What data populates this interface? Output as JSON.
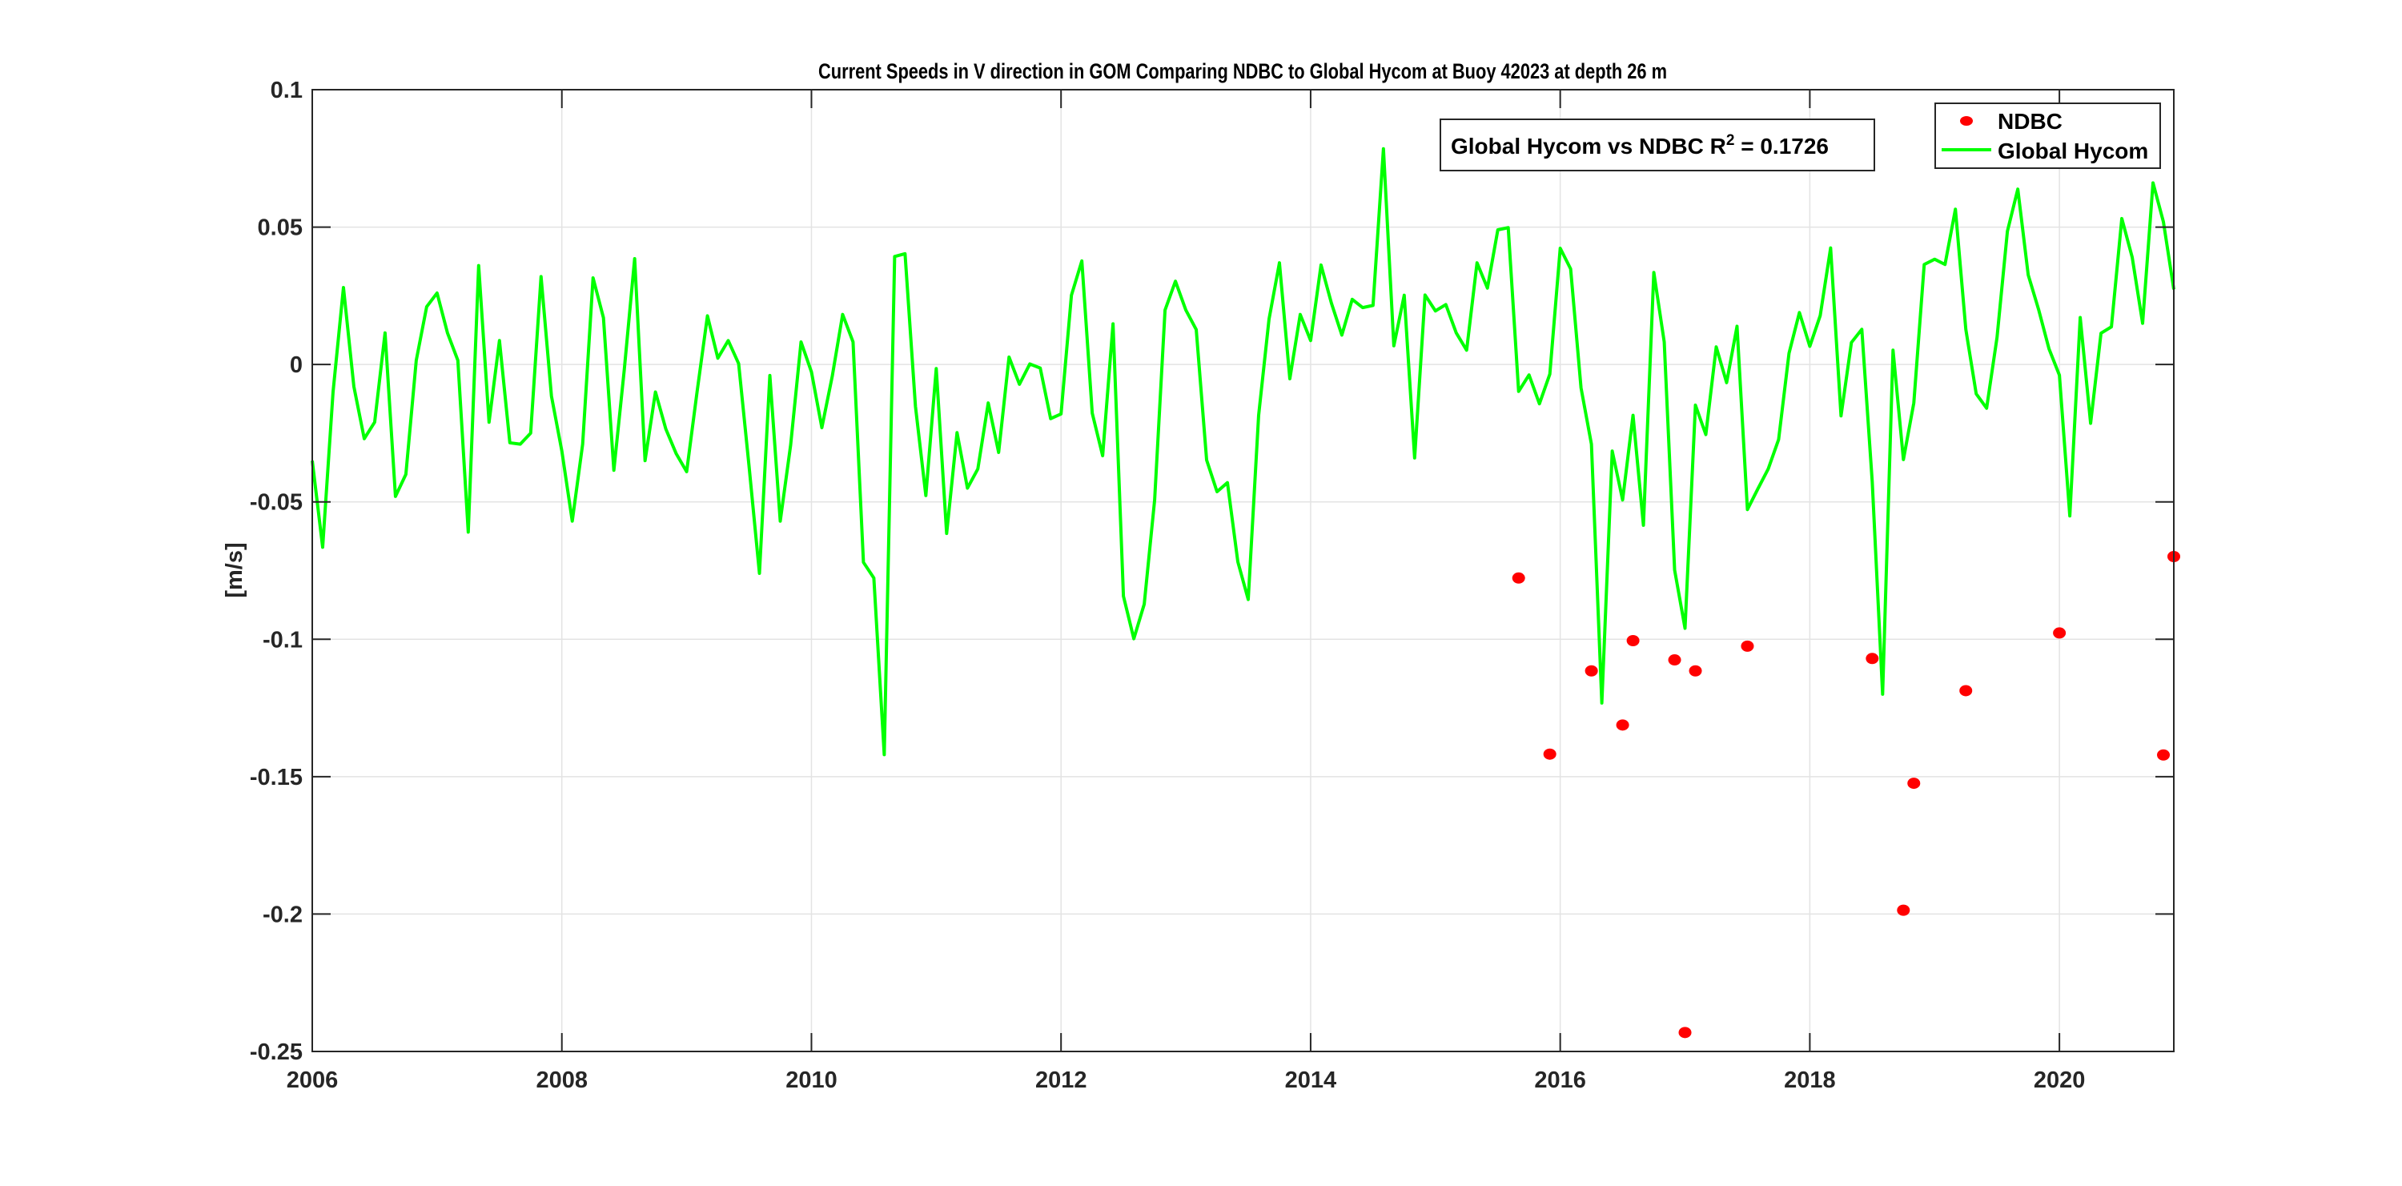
{
  "chart_data": {
    "type": "line",
    "title": "Current Speeds in V direction in GOM Comparing NDBC to Global Hycom at Buoy  42023  at depth  26 m",
    "xlabel": "",
    "ylabel": "[m/s]",
    "xlim": [
      "2006-01",
      "2020-12"
    ],
    "ylim": [
      -0.25,
      0.1
    ],
    "x_ticks": [
      "2006",
      "2008",
      "2010",
      "2012",
      "2014",
      "2016",
      "2018",
      "2020"
    ],
    "y_ticks": [
      "0.1",
      "0.05",
      "0",
      "-0.05",
      "-0.1",
      "-0.15",
      "-0.2",
      "-0.25"
    ],
    "grid": true,
    "legend_placement": "top-right",
    "annotation": {
      "prefix": "Global Hycom vs NDBC R",
      "superscript": "2",
      "suffix": " = 0.1726"
    },
    "series": [
      {
        "name": "NDBC",
        "type": "scatter",
        "color": "#ff0000",
        "points": [
          {
            "date": "2015-09",
            "value": -0.0777
          },
          {
            "date": "2015-12",
            "value": -0.1418
          },
          {
            "date": "2016-04",
            "value": -0.1115
          },
          {
            "date": "2016-07",
            "value": -0.1312
          },
          {
            "date": "2016-08",
            "value": -0.1005
          },
          {
            "date": "2016-12",
            "value": -0.1075
          },
          {
            "date": "2017-01",
            "value": -0.2431
          },
          {
            "date": "2017-02",
            "value": -0.1115
          },
          {
            "date": "2017-07",
            "value": -0.1025
          },
          {
            "date": "2018-07",
            "value": -0.107
          },
          {
            "date": "2018-10",
            "value": -0.1986
          },
          {
            "date": "2018-11",
            "value": -0.1524
          },
          {
            "date": "2019-04",
            "value": -0.1187
          },
          {
            "date": "2020-01",
            "value": -0.0977
          },
          {
            "date": "2020-11",
            "value": -0.1421
          },
          {
            "date": "2020-12",
            "value": -0.0699
          }
        ]
      },
      {
        "name": "Global Hycom",
        "type": "line",
        "color": "#00ff00",
        "monthly_values_by_year": {
          "2006": [
            -0.035,
            -0.0665,
            -0.01,
            0.028,
            -0.008,
            -0.027,
            -0.021,
            0.0115,
            -0.048,
            -0.04,
            0.0015,
            0.021
          ],
          "2007": [
            0.026,
            0.0115,
            0.0015,
            -0.061,
            0.036,
            -0.021,
            0.0087,
            -0.0285,
            -0.029,
            -0.025,
            0.032,
            -0.0115
          ],
          "2008": [
            -0.0315,
            -0.057,
            -0.029,
            0.0315,
            0.017,
            -0.0385,
            -0.002,
            0.0385,
            -0.035,
            -0.01,
            -0.0235,
            -0.0325
          ],
          "2009": [
            -0.039,
            -0.01,
            0.0177,
            0.0023,
            0.0087,
            0.0003,
            -0.037,
            -0.076,
            -0.004,
            -0.057,
            -0.0293,
            0.0082
          ],
          "2010": [
            -0.0027,
            -0.023,
            -0.0043,
            0.0182,
            0.0082,
            -0.072,
            -0.0777,
            -0.142,
            0.0393,
            0.0403,
            -0.0152,
            -0.0477
          ],
          "2011": [
            -0.0015,
            -0.0615,
            -0.0248,
            -0.045,
            -0.038,
            -0.014,
            -0.032,
            0.0027,
            -0.0072,
            0.0002,
            -0.0013,
            -0.0197
          ],
          "2012": [
            -0.018,
            0.0252,
            0.0377,
            -0.0177,
            -0.0332,
            0.0148,
            -0.0843,
            -0.0998,
            -0.0872,
            -0.0493,
            0.0198,
            0.0303
          ],
          "2013": [
            0.0198,
            0.0127,
            -0.0348,
            -0.0463,
            -0.043,
            -0.0718,
            -0.0855,
            -0.0185,
            0.0165,
            0.037,
            -0.0052,
            0.0182
          ],
          "2014": [
            0.0087,
            0.0362,
            0.0223,
            0.0107,
            0.0237,
            0.0207,
            0.0215,
            0.0785,
            0.0068,
            0.0252,
            -0.034,
            0.0253
          ],
          "2015": [
            0.0195,
            0.0218,
            0.0115,
            0.0052,
            0.037,
            0.0278,
            0.049,
            0.0498,
            -0.0098,
            -0.0038,
            -0.0143,
            -0.0035
          ],
          "2016": [
            0.0423,
            0.0348,
            -0.0085,
            -0.029,
            -0.1232,
            -0.0315,
            -0.0493,
            -0.0185,
            -0.0585,
            0.0335,
            0.0082,
            -0.0748
          ],
          "2017": [
            -0.096,
            -0.0148,
            -0.0255,
            0.0064,
            -0.0066,
            0.0139,
            -0.0528,
            -0.0453,
            -0.038,
            -0.0273,
            0.0041,
            0.0189
          ],
          "2018": [
            0.0066,
            0.0178,
            0.0424,
            -0.0187,
            0.008,
            0.0128,
            -0.0426,
            -0.12,
            0.0052,
            -0.0346,
            -0.014,
            0.0364
          ],
          "2019": [
            0.0383,
            0.0364,
            0.0565,
            0.0128,
            -0.0107,
            -0.0159,
            0.0098,
            0.0485,
            0.0638,
            0.0326,
            0.02,
            0.0057
          ],
          "2020": [
            -0.0039,
            -0.0551,
            0.0171,
            -0.0214,
            0.0114,
            0.0137,
            0.0531,
            0.039,
            0.015,
            0.0661,
            0.0519,
            0.0273
          ]
        }
      }
    ]
  }
}
